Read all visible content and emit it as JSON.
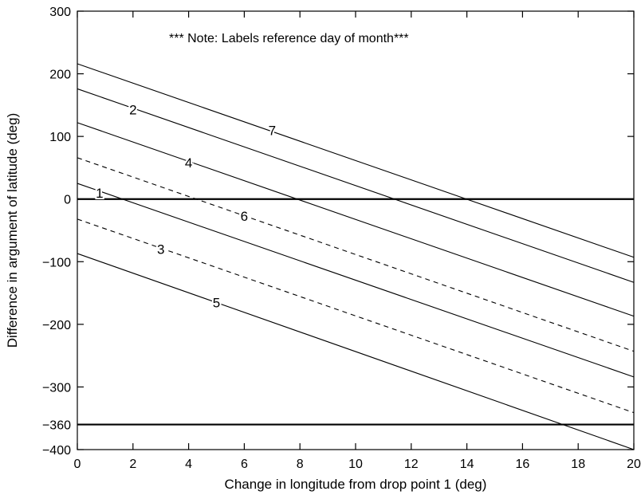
{
  "chart_data": {
    "type": "line",
    "title": "",
    "note": "*** Note: Labels reference day of month***",
    "xlabel": "Change in longitude from drop point 1 (deg)",
    "ylabel": "Difference in argument of latitude (deg)",
    "xlim": [
      0,
      20
    ],
    "ylim": [
      -400,
      300
    ],
    "x_ticks": [
      0,
      2,
      4,
      6,
      8,
      10,
      12,
      14,
      16,
      18,
      20
    ],
    "y_ticks": [
      300,
      200,
      100,
      0,
      -100,
      -200,
      -300,
      -360,
      -400
    ],
    "x_tick_labels": [
      "0",
      "2",
      "4",
      "6",
      "8",
      "10",
      "12",
      "14",
      "16",
      "18",
      "20"
    ],
    "y_tick_labels": [
      "300",
      "200",
      "100",
      "0",
      "−100",
      "−200",
      "−300",
      "−360",
      "−400"
    ],
    "grid": false,
    "reference_lines": [
      {
        "y": 0,
        "style": "solid-thick"
      },
      {
        "y": -360,
        "style": "solid-thick"
      }
    ],
    "series": [
      {
        "name": "7",
        "style": "solid",
        "x": [
          0,
          20
        ],
        "y": [
          216,
          -93
        ],
        "label_at": [
          7,
          110
        ]
      },
      {
        "name": "2",
        "style": "solid",
        "x": [
          0,
          20
        ],
        "y": [
          176,
          -133
        ],
        "label_at": [
          2,
          143
        ]
      },
      {
        "name": "4",
        "style": "solid",
        "x": [
          0,
          20
        ],
        "y": [
          122,
          -187
        ],
        "label_at": [
          4,
          58
        ]
      },
      {
        "name": "6",
        "style": "dashed",
        "x": [
          0,
          20
        ],
        "y": [
          66,
          -243
        ],
        "label_at": [
          6,
          -27
        ]
      },
      {
        "name": "1",
        "style": "solid",
        "x": [
          0,
          20
        ],
        "y": [
          25,
          -284
        ],
        "label_at": [
          0.8,
          10
        ]
      },
      {
        "name": "3",
        "style": "dashed",
        "x": [
          0,
          20
        ],
        "y": [
          -32,
          -341
        ],
        "label_at": [
          3,
          -80
        ]
      },
      {
        "name": "5",
        "style": "solid",
        "x": [
          0,
          20
        ],
        "y": [
          -87,
          -400
        ],
        "label_at": [
          5,
          -165
        ]
      }
    ]
  }
}
